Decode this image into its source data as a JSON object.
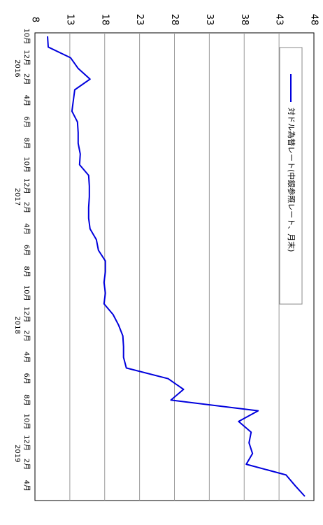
{
  "chart_data": {
    "type": "line",
    "title": "",
    "xlabel": "",
    "ylabel": "",
    "ylim": [
      8,
      48
    ],
    "yticks": [
      "8",
      "13",
      "18",
      "23",
      "28",
      "33",
      "38",
      "43",
      "48"
    ],
    "month_tick_labels": [
      "10月",
      "12月",
      "2月",
      "4月",
      "6月",
      "8月",
      "10月",
      "12月",
      "2月",
      "4月",
      "6月",
      "8月",
      "10月",
      "12月",
      "2月",
      "4月",
      "6月",
      "8月",
      "10月",
      "12月",
      "2月",
      "4月"
    ],
    "year_labels": [
      "2016",
      "2017",
      "2018",
      "2019"
    ],
    "x": [
      "2015-10",
      "2015-11",
      "2015-12",
      "2016-01",
      "2016-02",
      "2016-03",
      "2016-04",
      "2016-05",
      "2016-06",
      "2016-07",
      "2016-08",
      "2016-09",
      "2016-10",
      "2016-11",
      "2016-12",
      "2017-01",
      "2017-02",
      "2017-03",
      "2017-04",
      "2017-05",
      "2017-06",
      "2017-07",
      "2017-08",
      "2017-09",
      "2017-10",
      "2017-11",
      "2017-12",
      "2018-01",
      "2018-02",
      "2018-03",
      "2018-04",
      "2018-05",
      "2018-06",
      "2018-07",
      "2018-08",
      "2018-09",
      "2018-10",
      "2018-11",
      "2018-12",
      "2019-01",
      "2019-02",
      "2019-03",
      "2019-04",
      "2019-05"
    ],
    "series": [
      {
        "name": "対ドル為替レート(中銀参照レート、月末)",
        "color": "#0000dd",
        "values": [
          9.8,
          9.9,
          13.1,
          14.2,
          15.9,
          13.7,
          13.5,
          13.3,
          14.1,
          14.2,
          14.2,
          14.5,
          14.4,
          15.7,
          15.8,
          15.8,
          15.7,
          15.7,
          15.9,
          16.8,
          17.1,
          18.1,
          18.1,
          17.9,
          18.1,
          17.9,
          19.2,
          20.0,
          20.6,
          20.7,
          20.7,
          21.1,
          27.1,
          29.3,
          27.5,
          40.0,
          37.2,
          39.0,
          38.7,
          39.2,
          38.3,
          44.0,
          45.3,
          46.7
        ]
      }
    ],
    "grid": true,
    "legend_position": "top"
  }
}
